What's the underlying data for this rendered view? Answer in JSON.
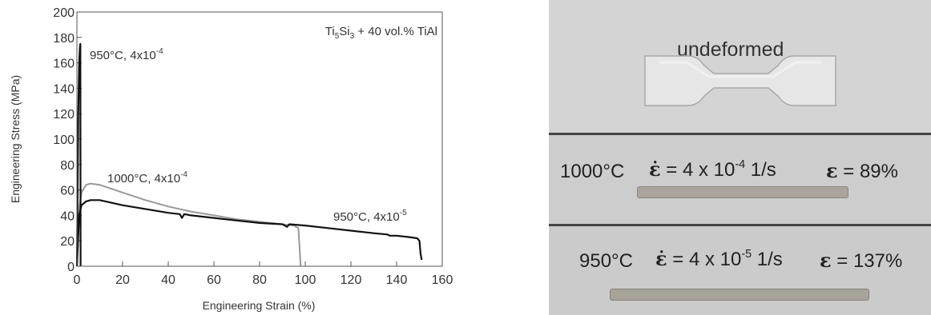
{
  "chart_data": {
    "type": "line",
    "xlabel": "Engineering Strain (%)",
    "ylabel": "Engineering Stress (MPa)",
    "xlim": [
      0,
      160
    ],
    "ylim": [
      0,
      200
    ],
    "xticks": [
      "0",
      "20",
      "40",
      "60",
      "80",
      "100",
      "120",
      "140",
      "160"
    ],
    "yticks": [
      "0",
      "20",
      "40",
      "60",
      "80",
      "100",
      "120",
      "140",
      "160",
      "180",
      "200"
    ],
    "annotation": "Ti5Si3 + 40 vol.% TiAl",
    "annotation_parts": {
      "a": "Ti",
      "b": "5",
      "c": "Si",
      "d": "3",
      "e": " + 40 vol.% TiAl"
    },
    "series": [
      {
        "name": "950°C, 4x10-4",
        "label_parts": {
          "main": "950°C, 4x10",
          "exp": "-4"
        },
        "color": "#111111",
        "x": [
          0,
          0.3,
          0.6,
          1.0,
          1.3,
          1.5,
          1.6
        ],
        "y": [
          0,
          60,
          120,
          160,
          172,
          175,
          0
        ]
      },
      {
        "name": "1000°C, 4x10-4",
        "label_parts": {
          "main": "1000°C, 4x10",
          "exp": "-4"
        },
        "color": "#999999",
        "x": [
          0,
          1,
          2,
          4,
          6,
          10,
          20,
          30,
          40,
          50,
          60,
          70,
          80,
          90,
          95,
          97,
          97.5,
          98
        ],
        "y": [
          0,
          45,
          58,
          64,
          65,
          64,
          58,
          52,
          47,
          43,
          40,
          37,
          35,
          33,
          32,
          30,
          15,
          0
        ]
      },
      {
        "name": "950°C, 4x10-5",
        "label_parts": {
          "main": "950°C, 4x10",
          "exp": "-5"
        },
        "color": "#111111",
        "x": [
          0,
          1,
          2,
          4,
          6,
          10,
          20,
          30,
          40,
          45,
          46,
          47,
          50,
          60,
          70,
          80,
          90,
          92,
          93,
          100,
          110,
          120,
          130,
          136,
          137,
          140,
          145,
          149,
          150,
          150.5,
          151
        ],
        "y": [
          0,
          40,
          48,
          51,
          52,
          52,
          48,
          45,
          42,
          41,
          38,
          41,
          40,
          38,
          36,
          34,
          33,
          31,
          33,
          32,
          30,
          28,
          26,
          25,
          24,
          24,
          23,
          22,
          20,
          10,
          5
        ]
      }
    ]
  },
  "photo": {
    "undeformed_label": "undeformed",
    "specimens": [
      {
        "temperature": "1000°C",
        "rate_symbol": "ε̇",
        "rate_text": " = 4 x 10",
        "rate_exp": "-4",
        "rate_unit": " 1/s",
        "strain_symbol": "ε",
        "strain_text": " = 89%"
      },
      {
        "temperature": "950°C",
        "rate_symbol": "ε̇",
        "rate_text": " = 4 x 10",
        "rate_exp": "-5",
        "rate_unit": " 1/s",
        "strain_symbol": "ε",
        "strain_text": " = 137%"
      }
    ]
  }
}
